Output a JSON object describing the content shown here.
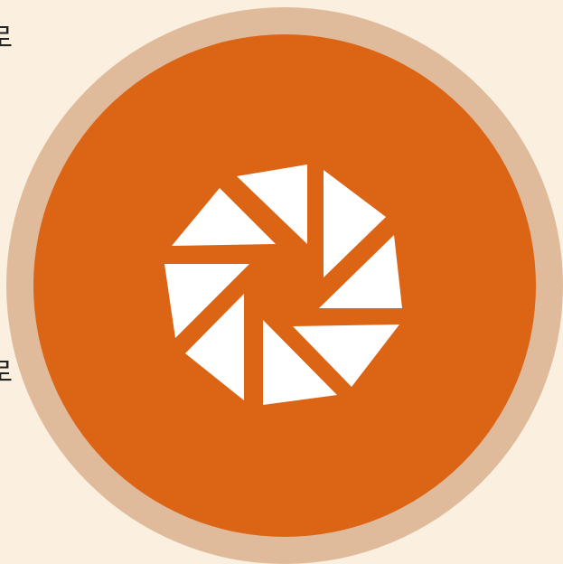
{
  "edge_text": {
    "top": "로",
    "bottom": "로"
  },
  "badge": {
    "icon": "aperture-icon",
    "colors": {
      "background": "#fbf0df",
      "ring": "#dfbb9c",
      "disc": "#dc6415",
      "icon": "#ffffff"
    }
  }
}
